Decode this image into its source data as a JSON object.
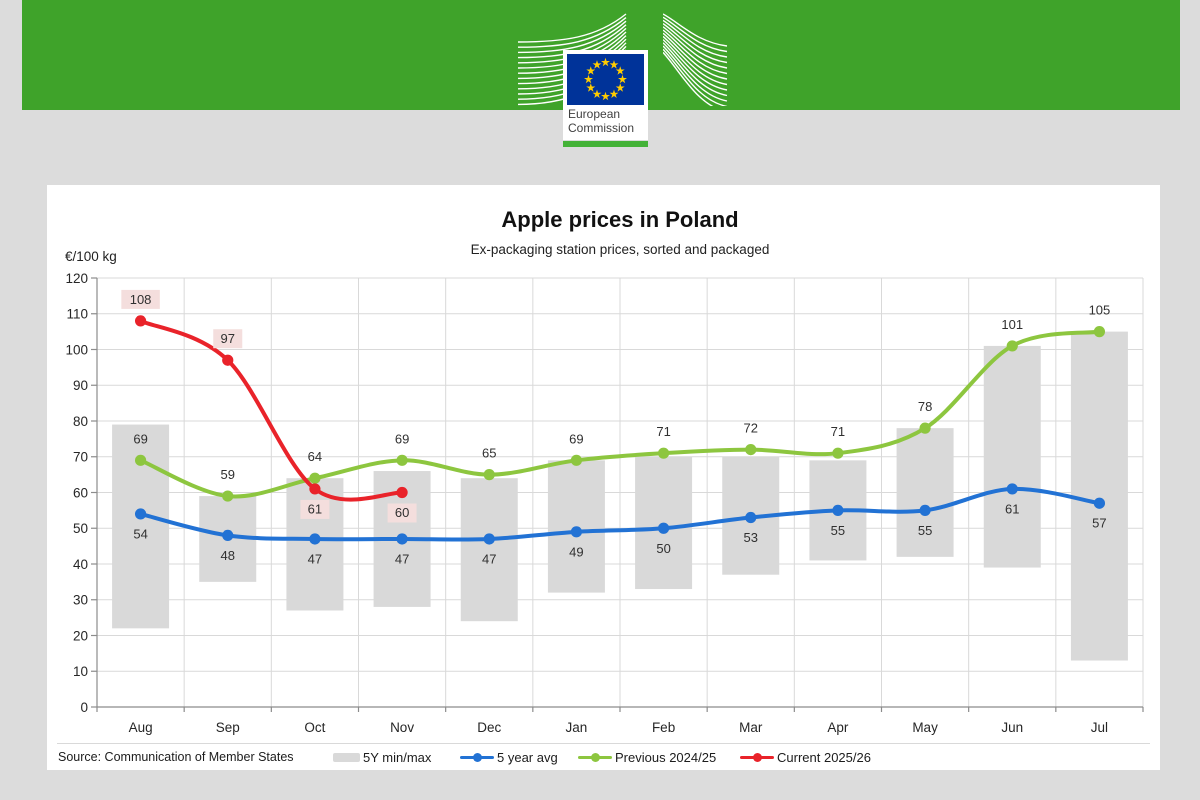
{
  "page": {
    "background": "#dcdcdc"
  },
  "header": {
    "band_color": "#3fa32a",
    "logo": {
      "text_line1": "European",
      "text_line2": "Commission",
      "flag_color": "#003399",
      "star_color": "#ffcc00",
      "underline_color": "#44b238"
    }
  },
  "chart_data": {
    "type": "line",
    "title": "Apple prices in Poland",
    "subtitle": "Ex-packaging station prices, sorted and packaged",
    "unit_label": "€/100 kg",
    "source": "Source: Communication of Member States",
    "categories": [
      "Aug",
      "Sep",
      "Oct",
      "Nov",
      "Dec",
      "Jan",
      "Feb",
      "Mar",
      "Apr",
      "May",
      "Jun",
      "Jul"
    ],
    "ylim": [
      0,
      120
    ],
    "y_tick_step": 10,
    "grid": true,
    "legend_position": "bottom",
    "range_series": {
      "name": "5Y min/max",
      "color": "#d9d9d9",
      "min": [
        22,
        35,
        27,
        28,
        24,
        32,
        33,
        37,
        41,
        42,
        39,
        13
      ],
      "max": [
        79,
        59,
        64,
        66,
        64,
        69,
        70,
        70,
        69,
        78,
        101,
        105
      ]
    },
    "series": [
      {
        "name": "5 year avg",
        "color": "#2272d4",
        "values": [
          54,
          48,
          47,
          47,
          47,
          49,
          50,
          53,
          55,
          55,
          61,
          57
        ],
        "label_position": "below"
      },
      {
        "name": "Previous 2024/25",
        "color": "#8dc63f",
        "values": [
          69,
          59,
          64,
          69,
          65,
          69,
          71,
          72,
          71,
          78,
          101,
          105
        ],
        "label_position": "above"
      },
      {
        "name": "Current 2025/26",
        "color": "#e9232a",
        "values": [
          108,
          97,
          61,
          60
        ],
        "label_position": [
          "above",
          "above",
          "below",
          "below"
        ],
        "label_bg": "#f4dedd"
      }
    ]
  }
}
